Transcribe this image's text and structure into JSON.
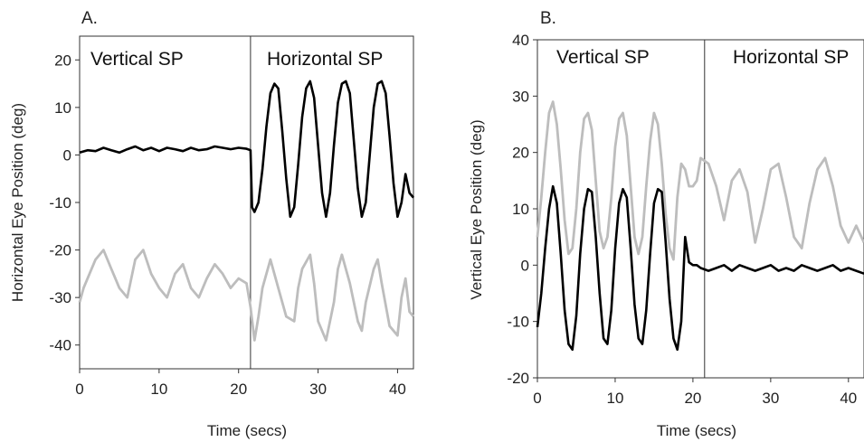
{
  "chart_data": [
    {
      "type": "line",
      "panel_label": "A.",
      "xlabel": "Time (secs)",
      "ylabel": "Horizontal Eye Position (deg)",
      "xlim": [
        0,
        42
      ],
      "ylim": [
        -45,
        25
      ],
      "xticks": [
        0,
        10,
        20,
        30,
        40
      ],
      "yticks": [
        20,
        10,
        0,
        -10,
        -20,
        -30,
        -40
      ],
      "divider_x": 21.5,
      "region_labels": [
        "Vertical SP",
        "Horizontal SP"
      ],
      "grid": false,
      "series": [
        {
          "color": "#000000",
          "x": [
            0,
            1,
            2,
            3,
            4,
            5,
            6,
            7,
            8,
            9,
            10,
            11,
            12,
            13,
            14,
            15,
            16,
            17,
            18,
            19,
            20,
            21,
            21.5,
            21.7,
            22,
            22.5,
            23,
            23.5,
            24,
            24.5,
            25,
            25.5,
            26,
            26.5,
            27,
            27.5,
            28,
            28.5,
            29,
            29.5,
            30,
            30.5,
            31,
            31.5,
            32,
            32.5,
            33,
            33.5,
            34,
            34.5,
            35,
            35.5,
            36,
            36.5,
            37,
            37.5,
            38,
            38.5,
            39,
            39.5,
            40,
            40.5,
            41,
            41.5,
            42
          ],
          "y": [
            0.5,
            1,
            0.8,
            1.5,
            1,
            0.5,
            1.2,
            1.8,
            1,
            1.5,
            0.8,
            1.5,
            1.2,
            0.8,
            1.5,
            1,
            1.2,
            1.8,
            1.5,
            1.2,
            1.5,
            1.3,
            1,
            -11,
            -12,
            -10,
            -3,
            6,
            13,
            15,
            14,
            5,
            -5,
            -13,
            -11,
            -2,
            8,
            14,
            15.5,
            12,
            2,
            -8,
            -13,
            -8,
            2,
            11,
            15,
            15.5,
            13,
            3,
            -7,
            -13,
            -10,
            0,
            10,
            15,
            15.5,
            13,
            4,
            -6,
            -13,
            -10,
            -4,
            -8,
            -9
          ]
        },
        {
          "color": "#bdbdbd",
          "x": [
            0,
            0.5,
            1,
            2,
            3,
            4,
            5,
            6,
            7,
            8,
            9,
            10,
            11,
            12,
            13,
            14,
            15,
            16,
            17,
            18,
            19,
            20,
            21,
            21.5,
            22,
            22.5,
            23,
            24,
            25,
            26,
            27,
            27.5,
            28,
            29,
            29.5,
            30,
            31,
            32,
            32.5,
            33,
            34,
            35,
            35.5,
            36,
            37,
            37.5,
            38,
            39,
            40,
            40.5,
            41,
            41.5,
            42
          ],
          "y": [
            -31,
            -28,
            -26,
            -22,
            -20,
            -24,
            -28,
            -30,
            -22,
            -20,
            -25,
            -28,
            -30,
            -25,
            -23,
            -28,
            -30,
            -26,
            -23,
            -25,
            -28,
            -26,
            -27,
            -32,
            -39,
            -34,
            -28,
            -22,
            -28,
            -34,
            -35,
            -28,
            -24,
            -21,
            -27,
            -35,
            -39,
            -31,
            -24,
            -21,
            -27,
            -35,
            -37,
            -31,
            -24,
            -22,
            -27,
            -36,
            -38,
            -30,
            -26,
            -33,
            -34
          ]
        }
      ]
    },
    {
      "type": "line",
      "panel_label": "B.",
      "xlabel": "Time (secs)",
      "ylabel": "Vertical Eye Position (deg)",
      "xlim": [
        0,
        42
      ],
      "ylim": [
        -20,
        40
      ],
      "xticks": [
        0,
        10,
        20,
        30,
        40
      ],
      "yticks": [
        40,
        30,
        20,
        10,
        0,
        -10,
        -20
      ],
      "divider_x": 21.5,
      "region_labels": [
        "Vertical SP",
        "Horizontal SP"
      ],
      "grid": false,
      "series": [
        {
          "color": "#000000",
          "x": [
            0,
            0.5,
            1,
            1.5,
            2,
            2.5,
            3,
            3.5,
            4,
            4.5,
            5,
            5.5,
            6,
            6.5,
            7,
            7.5,
            8,
            8.5,
            9,
            9.5,
            10,
            10.5,
            11,
            11.5,
            12,
            12.5,
            13,
            13.5,
            14,
            14.5,
            15,
            15.5,
            16,
            16.5,
            17,
            17.5,
            18,
            18.5,
            19,
            19.5,
            20,
            20.5,
            21,
            22,
            23,
            24,
            25,
            26,
            27,
            28,
            29,
            30,
            31,
            32,
            33,
            34,
            35,
            36,
            37,
            38,
            39,
            40,
            41,
            42
          ],
          "y": [
            -11,
            -5,
            3,
            10,
            14,
            11,
            2,
            -8,
            -14,
            -15,
            -9,
            2,
            10,
            13.5,
            13,
            5,
            -5,
            -13,
            -14,
            -8,
            3,
            11,
            13.5,
            12,
            3,
            -7,
            -13,
            -14,
            -8,
            2,
            11,
            13.5,
            13,
            4,
            -6,
            -13,
            -15,
            -10,
            5,
            0.5,
            0,
            0,
            -0.5,
            -1,
            -0.5,
            0,
            -1,
            0,
            -0.5,
            -1,
            -0.5,
            0,
            -1,
            -0.5,
            -1,
            0,
            -0.5,
            -1,
            -0.5,
            0,
            -1,
            -0.5,
            -1,
            -1.5
          ]
        },
        {
          "color": "#bdbdbd",
          "x": [
            0,
            0.5,
            1,
            1.5,
            2,
            2.5,
            3,
            3.5,
            4,
            4.5,
            5,
            5.5,
            6,
            6.5,
            7,
            7.5,
            8,
            8.5,
            9,
            9.5,
            10,
            10.5,
            11,
            11.5,
            12,
            12.5,
            13,
            13.5,
            14,
            14.5,
            15,
            15.5,
            16,
            16.5,
            17,
            17.5,
            18,
            18.5,
            19,
            19.5,
            20,
            20.5,
            21,
            22,
            23,
            24,
            25,
            26,
            27,
            28,
            29,
            30,
            31,
            32,
            33,
            34,
            35,
            36,
            37,
            38,
            39,
            40,
            41,
            42
          ],
          "y": [
            5,
            12,
            20,
            27,
            29,
            25,
            17,
            8,
            2,
            3,
            10,
            20,
            26,
            27,
            24,
            15,
            6,
            3,
            5,
            12,
            21,
            26,
            27,
            23,
            14,
            5,
            2,
            5,
            14,
            22,
            27,
            25,
            18,
            9,
            3,
            1,
            12,
            18,
            17,
            14,
            14,
            15,
            19,
            18,
            14,
            8,
            15,
            17,
            13,
            4,
            10,
            17,
            18,
            12,
            5,
            3,
            11,
            17,
            19,
            14,
            7,
            4,
            7,
            4
          ]
        }
      ]
    }
  ]
}
